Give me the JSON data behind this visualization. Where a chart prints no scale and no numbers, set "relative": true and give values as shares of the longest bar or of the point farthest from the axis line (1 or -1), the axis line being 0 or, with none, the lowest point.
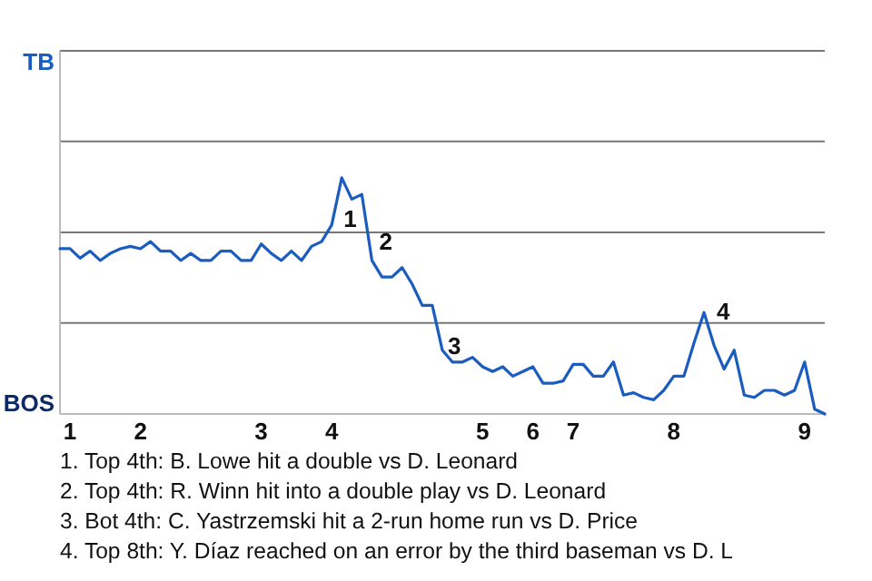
{
  "chart_data": {
    "type": "line",
    "relative": true,
    "categories": [
      null,
      "1",
      null,
      null,
      null,
      null,
      null,
      null,
      "2",
      null,
      null,
      null,
      null,
      null,
      null,
      null,
      null,
      null,
      null,
      null,
      "3",
      null,
      null,
      null,
      null,
      null,
      null,
      "4",
      null,
      null,
      null,
      null,
      null,
      null,
      null,
      null,
      null,
      null,
      null,
      null,
      null,
      null,
      "5",
      null,
      null,
      null,
      null,
      "6",
      null,
      null,
      null,
      "7",
      null,
      null,
      null,
      null,
      null,
      null,
      null,
      null,
      null,
      "8",
      null,
      null,
      null,
      null,
      null,
      null,
      null,
      null,
      null,
      null,
      null,
      null,
      "9",
      null,
      null
    ],
    "series": [
      {
        "color": "#1a5cc0",
        "values": [
          0.7,
          0.7,
          0.66,
          0.69,
          0.65,
          0.68,
          0.7,
          0.71,
          0.7,
          0.73,
          0.69,
          0.69,
          0.65,
          0.68,
          0.65,
          0.65,
          0.69,
          0.69,
          0.65,
          0.65,
          0.72,
          0.68,
          0.65,
          0.69,
          0.65,
          0.71,
          0.73,
          0.8,
          1,
          0.91,
          0.93,
          0.65,
          0.58,
          0.58,
          0.62,
          0.55,
          0.46,
          0.46,
          0.27,
          0.22,
          0.22,
          0.24,
          0.2,
          0.18,
          0.2,
          0.16,
          0.18,
          0.2,
          0.13,
          0.13,
          0.14,
          0.21,
          0.21,
          0.16,
          0.16,
          0.22,
          0.08,
          0.09,
          0.07,
          0.06,
          0.1,
          0.16,
          0.16,
          0.3,
          0.43,
          0.29,
          0.19,
          0.27,
          0.08,
          0.07,
          0.1,
          0.1,
          0.08,
          0.1,
          0.22,
          0.02,
          0
        ]
      }
    ],
    "ref_lines": [
      {
        "axis": "y",
        "value": 0.385,
        "color": "#777777"
      },
      {
        "axis": "y",
        "value": 0.769,
        "color": "#777777"
      },
      {
        "axis": "y",
        "value": 1.154,
        "color": "#777777"
      },
      {
        "axis": "y",
        "value": 1.538,
        "color": "#777777"
      }
    ],
    "marker": "none",
    "line_style": "solid",
    "annotations": [
      "1",
      "2",
      "3",
      "4",
      "TB",
      "BOS",
      "1. Top 4th: B. Lowe hit a double vs D. Leonard",
      "2. Top 4th: R. Winn hit into a double play vs D. Leonard",
      "3. Bot 4th: C. Yastrzemski hit a 2-run home run vs D. Price",
      "4. Top 8th: Y. Díaz reached on an error by the third baseman vs D. L"
    ]
  }
}
